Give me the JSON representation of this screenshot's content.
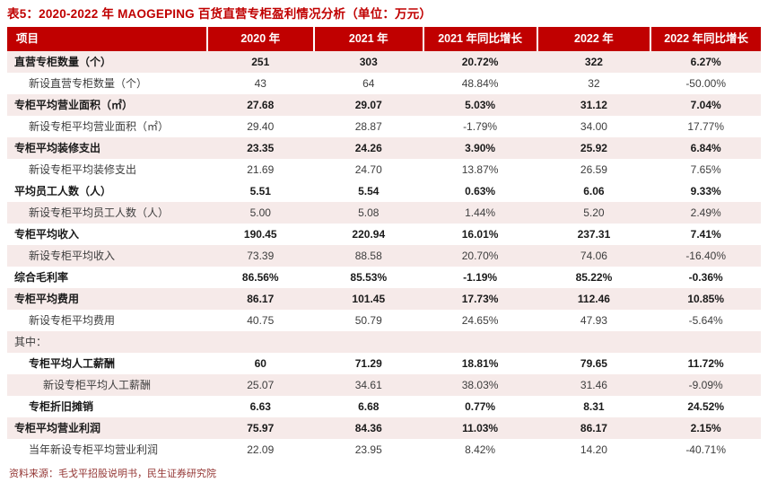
{
  "title": "表5：2020-2022 年 MAOGEPING 百货直营专柜盈利情况分析（单位：万元）",
  "source": "资料来源：毛戈平招股说明书，民生证券研究院",
  "colors": {
    "header_red": "#C00000",
    "title_red": "#C00000",
    "row_shade_pink": "#F6EAE9",
    "source_dark_red": "#943634",
    "body_text": "#3D3D3D"
  },
  "table": {
    "columns": [
      "项目",
      "2020 年",
      "2021 年",
      "2021 年同比增长",
      "2022 年",
      "2022 年同比增长"
    ],
    "rows": [
      {
        "label": "直营专柜数量（个）",
        "values": [
          "251",
          "303",
          "20.72%",
          "322",
          "6.27%"
        ],
        "bold": true,
        "indent": 0,
        "shaded": true
      },
      {
        "label": "新设直营专柜数量（个）",
        "values": [
          "43",
          "64",
          "48.84%",
          "32",
          "-50.00%"
        ],
        "bold": false,
        "indent": 1,
        "shaded": false
      },
      {
        "label": "专柜平均营业面积（㎡）",
        "values": [
          "27.68",
          "29.07",
          "5.03%",
          "31.12",
          "7.04%"
        ],
        "bold": true,
        "indent": 0,
        "shaded": true
      },
      {
        "label": "新设专柜平均营业面积（㎡）",
        "values": [
          "29.40",
          "28.87",
          "-1.79%",
          "34.00",
          "17.77%"
        ],
        "bold": false,
        "indent": 1,
        "shaded": false
      },
      {
        "label": "专柜平均装修支出",
        "values": [
          "23.35",
          "24.26",
          "3.90%",
          "25.92",
          "6.84%"
        ],
        "bold": true,
        "indent": 0,
        "shaded": true
      },
      {
        "label": "新设专柜平均装修支出",
        "values": [
          "21.69",
          "24.70",
          "13.87%",
          "26.59",
          "7.65%"
        ],
        "bold": false,
        "indent": 1,
        "shaded": false
      },
      {
        "label": "平均员工人数（人）",
        "values": [
          "5.51",
          "5.54",
          "0.63%",
          "6.06",
          "9.33%"
        ],
        "bold": true,
        "indent": 0,
        "shaded": false
      },
      {
        "label": "新设专柜平均员工人数（人）",
        "values": [
          "5.00",
          "5.08",
          "1.44%",
          "5.20",
          "2.49%"
        ],
        "bold": false,
        "indent": 1,
        "shaded": true
      },
      {
        "label": "专柜平均收入",
        "values": [
          "190.45",
          "220.94",
          "16.01%",
          "237.31",
          "7.41%"
        ],
        "bold": true,
        "indent": 0,
        "shaded": false
      },
      {
        "label": "新设专柜平均收入",
        "values": [
          "73.39",
          "88.58",
          "20.70%",
          "74.06",
          "-16.40%"
        ],
        "bold": false,
        "indent": 1,
        "shaded": true
      },
      {
        "label": "综合毛利率",
        "values": [
          "86.56%",
          "85.53%",
          "-1.19%",
          "85.22%",
          "-0.36%"
        ],
        "bold": true,
        "indent": 0,
        "shaded": false
      },
      {
        "label": "专柜平均费用",
        "values": [
          "86.17",
          "101.45",
          "17.73%",
          "112.46",
          "10.85%"
        ],
        "bold": true,
        "indent": 0,
        "shaded": true
      },
      {
        "label": "新设专柜平均费用",
        "values": [
          "40.75",
          "50.79",
          "24.65%",
          "47.93",
          "-5.64%"
        ],
        "bold": false,
        "indent": 1,
        "shaded": false
      },
      {
        "label": "其中：",
        "values": [
          "",
          "",
          "",
          "",
          ""
        ],
        "bold": false,
        "indent": 0,
        "shaded": true
      },
      {
        "label": "专柜平均人工薪酬",
        "values": [
          "60",
          "71.29",
          "18.81%",
          "79.65",
          "11.72%"
        ],
        "bold": true,
        "indent": 1,
        "shaded": false
      },
      {
        "label": "新设专柜平均人工薪酬",
        "values": [
          "25.07",
          "34.61",
          "38.03%",
          "31.46",
          "-9.09%"
        ],
        "bold": false,
        "indent": 2,
        "shaded": true
      },
      {
        "label": "专柜折旧摊销",
        "values": [
          "6.63",
          "6.68",
          "0.77%",
          "8.31",
          "24.52%"
        ],
        "bold": true,
        "indent": 1,
        "shaded": false
      },
      {
        "label": "专柜平均营业利润",
        "values": [
          "75.97",
          "84.36",
          "11.03%",
          "86.17",
          "2.15%"
        ],
        "bold": true,
        "indent": 0,
        "shaded": true
      },
      {
        "label": "当年新设专柜平均营业利润",
        "values": [
          "22.09",
          "23.95",
          "8.42%",
          "14.20",
          "-40.71%"
        ],
        "bold": false,
        "indent": 1,
        "shaded": false
      }
    ]
  }
}
